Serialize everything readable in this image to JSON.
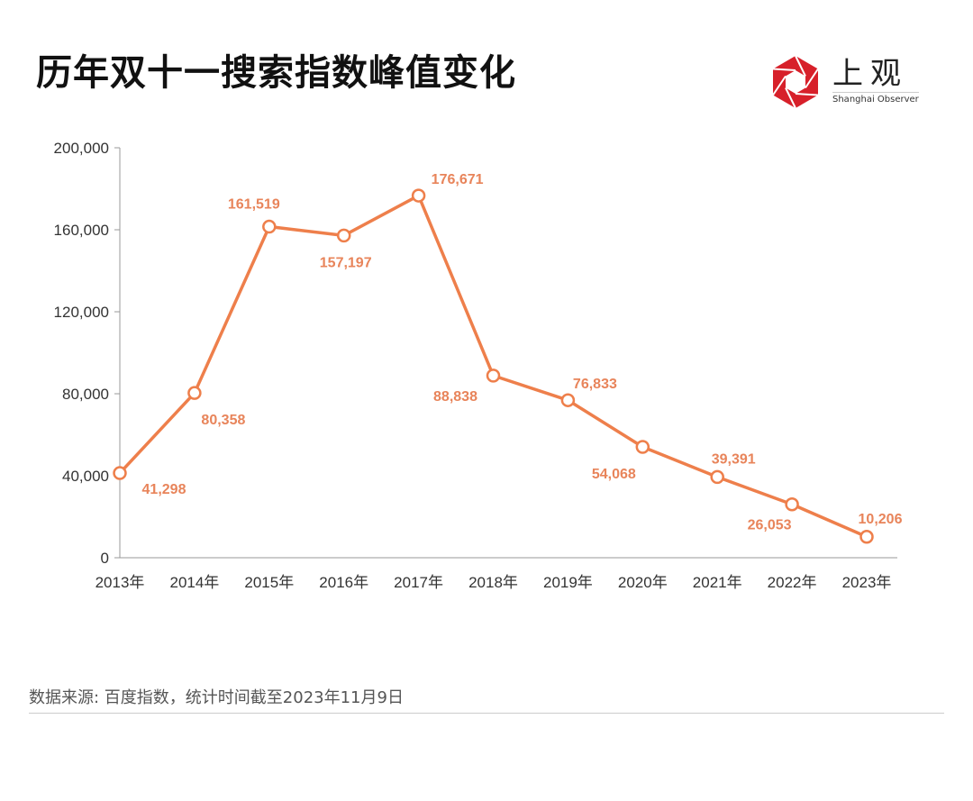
{
  "header": {
    "title": "历年双十一搜索指数峰值变化"
  },
  "logo": {
    "cn": "上观",
    "en": "Shanghai Observer",
    "color": "#d7202a"
  },
  "footer": {
    "source": "数据来源: 百度指数，统计时间截至2023年11月9日"
  },
  "chart_data": {
    "type": "line",
    "title": "历年双十一搜索指数峰值变化",
    "xlabel": "",
    "ylabel": "",
    "categories": [
      "2013年",
      "2014年",
      "2015年",
      "2016年",
      "2017年",
      "2018年",
      "2019年",
      "2020年",
      "2021年",
      "2022年",
      "2023年"
    ],
    "values": [
      41298,
      80358,
      161519,
      157197,
      176671,
      88838,
      76833,
      54068,
      39391,
      26053,
      10206
    ],
    "data_labels": [
      "41,298",
      "80,358",
      "161,519",
      "157,197",
      "176,671",
      "88,838",
      "76,833",
      "54,068",
      "39,391",
      "26,053",
      "10,206"
    ],
    "ylim": [
      0,
      200000
    ],
    "yticks": [
      0,
      40000,
      80000,
      120000,
      160000,
      200000
    ],
    "ytick_labels": [
      "0",
      "40,000",
      "80,000",
      "120,000",
      "160,000",
      "200,000"
    ],
    "grid": false,
    "line_color": "#ee7f4b",
    "label_color": "#e8845a"
  }
}
